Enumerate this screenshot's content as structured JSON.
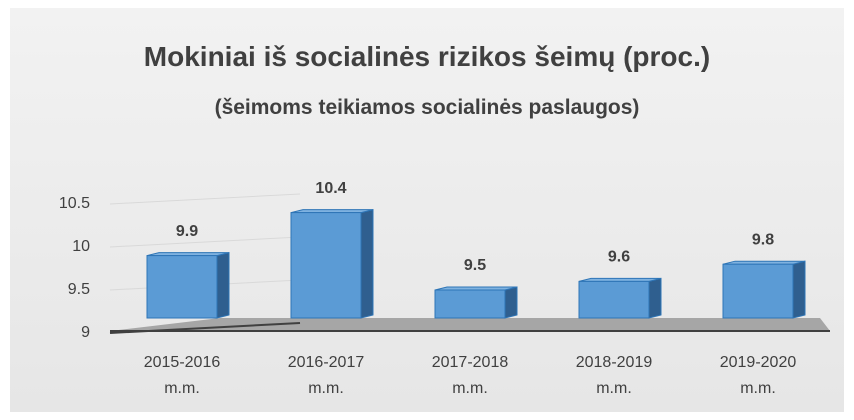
{
  "chart_data": {
    "type": "bar3d",
    "title": "Mokiniai iš socialinės rizikos šeimų (proc.)",
    "subtitle": "(šeimoms teikiamos socialinės paslaugos)",
    "categories": [
      "2015-2016 m.m.",
      "2016-2017 m.m.",
      "2017-2018 m.m.",
      "2018-2019 m.m.",
      "2019-2020 m.m."
    ],
    "values": [
      9.9,
      10.4,
      9.5,
      9.6,
      9.8
    ],
    "color": "#5b9bd5",
    "ylim": [
      9,
      10.5
    ],
    "yticks": [
      9,
      9.5,
      10,
      10.5
    ],
    "grid": true
  }
}
